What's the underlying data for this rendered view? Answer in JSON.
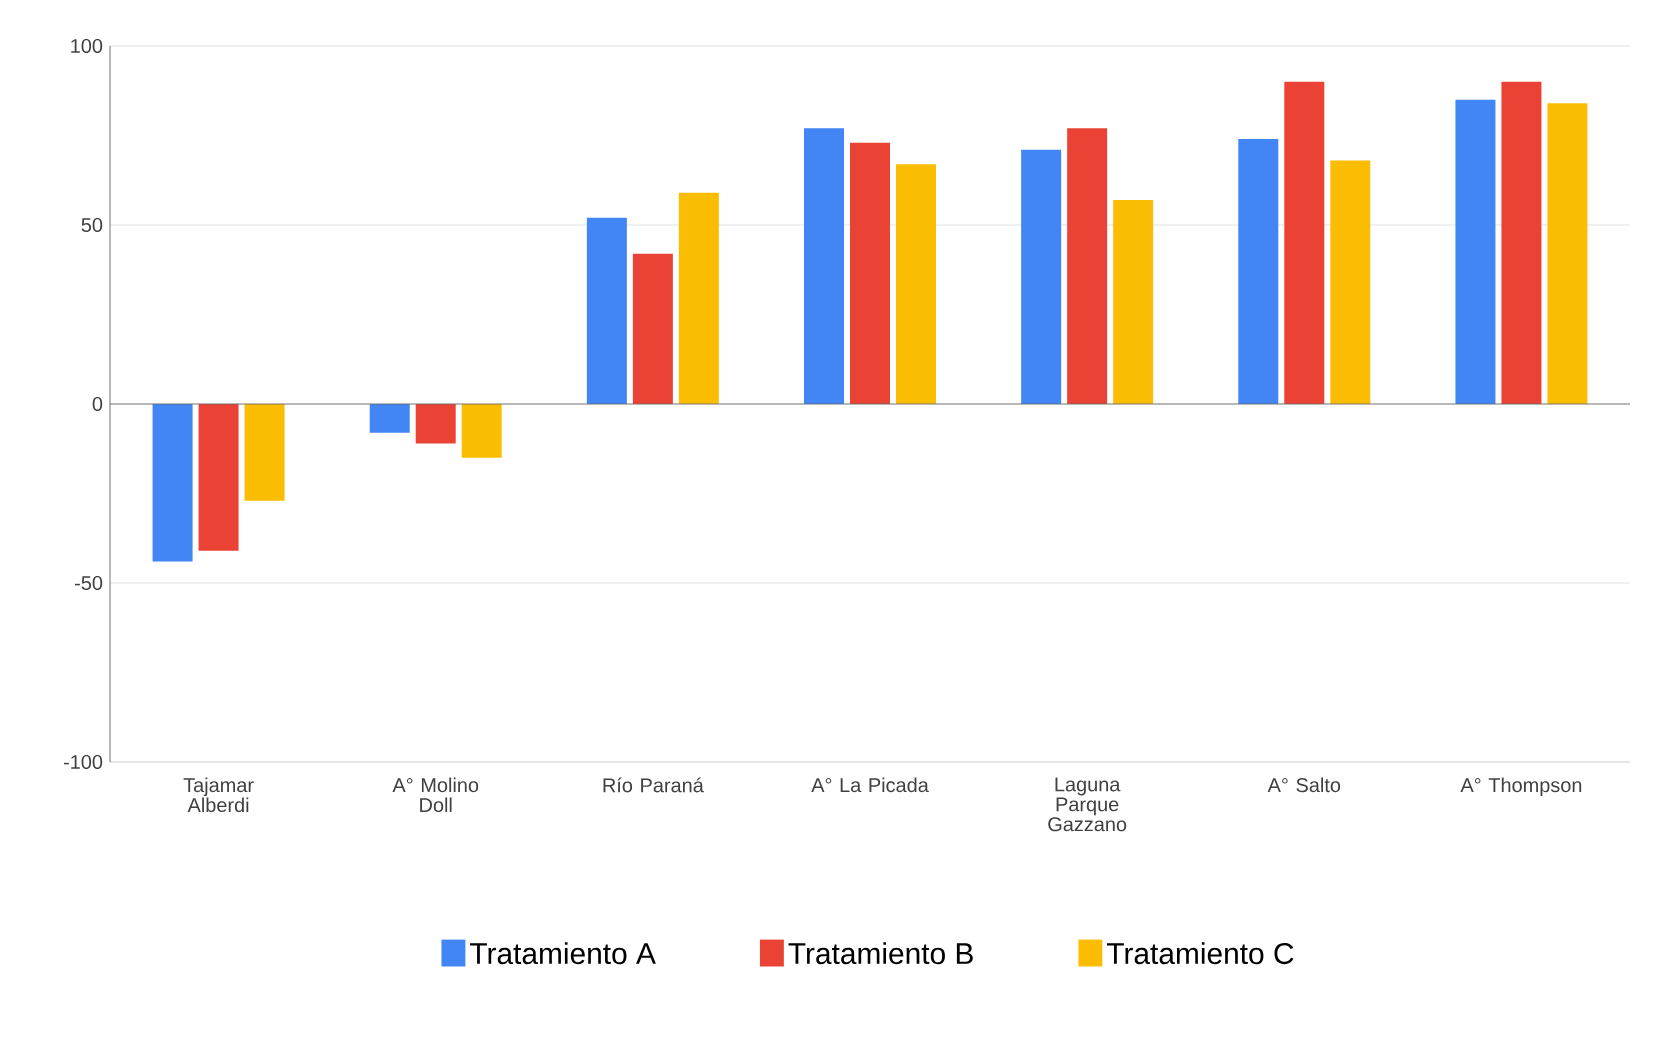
{
  "chart_data": {
    "type": "bar",
    "categories": [
      "Tajamar Alberdi",
      "A°  Molino Doll",
      "Río Paraná",
      "A° La Picada",
      "Laguna Parque Gazzano",
      "A° Salto",
      "A° Thompson"
    ],
    "series": [
      {
        "name": "Tratamiento A",
        "color": "#4285f4",
        "values": [
          -44,
          -8,
          52,
          77,
          71,
          74,
          85
        ]
      },
      {
        "name": "Tratamiento B",
        "color": "#ea4335",
        "values": [
          -41,
          -11,
          42,
          73,
          77,
          90,
          90
        ]
      },
      {
        "name": "Tratamiento C",
        "color": "#fbbc04",
        "values": [
          -27,
          -15,
          59,
          67,
          57,
          68,
          84
        ]
      }
    ],
    "ylim": [
      -100,
      100
    ],
    "yticks": [
      -100,
      -50,
      0,
      50,
      100
    ],
    "grid": "y",
    "legend": "bottom"
  }
}
